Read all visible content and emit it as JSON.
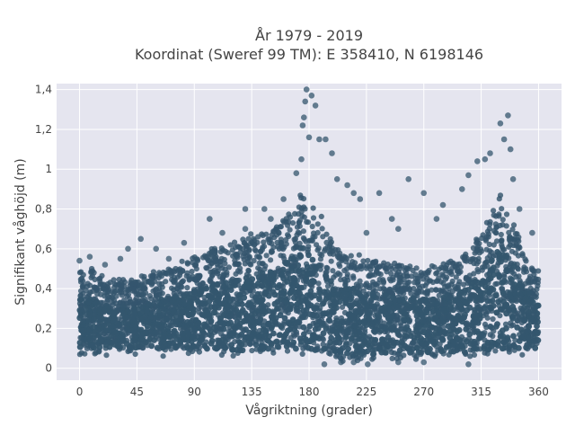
{
  "chart_data": {
    "type": "scatter",
    "title_line1": "År 1979 - 2019",
    "title_line2": "Koordinat (Sweref 99 TM): E 358410, N 6198146",
    "xlabel": "Vågriktning (grader)",
    "ylabel": "Signifikant våghöjd (m)",
    "xlim": [
      -18,
      378
    ],
    "ylim": [
      -0.06,
      1.43
    ],
    "xticks": [
      0,
      45,
      90,
      135,
      180,
      225,
      270,
      315,
      360
    ],
    "xtick_labels": [
      "0",
      "45",
      "90",
      "135",
      "180",
      "225",
      "270",
      "315",
      "360"
    ],
    "yticks": [
      0,
      0.2,
      0.4,
      0.6,
      0.8,
      1.0,
      1.2,
      1.4
    ],
    "ytick_labels": [
      "0",
      "0,2",
      "0,4",
      "0,6",
      "0,8",
      "1",
      "1,2",
      "1,4"
    ],
    "grid": true,
    "marker_color": "#34566e",
    "background_color": "#e5e5ef",
    "envelope": {
      "x": [
        0,
        10,
        20,
        45,
        90,
        120,
        150,
        165,
        175,
        180,
        190,
        200,
        225,
        270,
        300,
        315,
        325,
        330,
        340,
        350,
        360
      ],
      "y_max_dense": [
        0.5,
        0.5,
        0.45,
        0.45,
        0.55,
        0.65,
        0.7,
        0.78,
        0.88,
        0.85,
        0.75,
        0.6,
        0.55,
        0.5,
        0.55,
        0.68,
        0.82,
        0.88,
        0.75,
        0.55,
        0.5
      ],
      "y_min_dense": [
        0.07,
        0.07,
        0.07,
        0.07,
        0.07,
        0.06,
        0.06,
        0.06,
        0.06,
        0.05,
        0.05,
        0.04,
        0.04,
        0.05,
        0.05,
        0.06,
        0.06,
        0.06,
        0.07,
        0.07,
        0.07
      ]
    },
    "outliers": [
      {
        "x": 0,
        "y": 0.54
      },
      {
        "x": 8,
        "y": 0.56
      },
      {
        "x": 32,
        "y": 0.55
      },
      {
        "x": 38,
        "y": 0.6
      },
      {
        "x": 48,
        "y": 0.65
      },
      {
        "x": 60,
        "y": 0.6
      },
      {
        "x": 82,
        "y": 0.63
      },
      {
        "x": 102,
        "y": 0.75
      },
      {
        "x": 112,
        "y": 0.68
      },
      {
        "x": 130,
        "y": 0.8
      },
      {
        "x": 145,
        "y": 0.8
      },
      {
        "x": 160,
        "y": 0.85
      },
      {
        "x": 170,
        "y": 0.98
      },
      {
        "x": 174,
        "y": 1.05
      },
      {
        "x": 175,
        "y": 1.22
      },
      {
        "x": 176,
        "y": 1.26
      },
      {
        "x": 177,
        "y": 1.34
      },
      {
        "x": 178,
        "y": 1.4
      },
      {
        "x": 180,
        "y": 1.16
      },
      {
        "x": 182,
        "y": 1.37
      },
      {
        "x": 185,
        "y": 1.32
      },
      {
        "x": 188,
        "y": 1.15
      },
      {
        "x": 193,
        "y": 1.15
      },
      {
        "x": 198,
        "y": 1.08
      },
      {
        "x": 202,
        "y": 0.95
      },
      {
        "x": 210,
        "y": 0.92
      },
      {
        "x": 215,
        "y": 0.88
      },
      {
        "x": 220,
        "y": 0.85
      },
      {
        "x": 235,
        "y": 0.88
      },
      {
        "x": 245,
        "y": 0.75
      },
      {
        "x": 258,
        "y": 0.95
      },
      {
        "x": 270,
        "y": 0.88
      },
      {
        "x": 285,
        "y": 0.82
      },
      {
        "x": 300,
        "y": 0.9
      },
      {
        "x": 305,
        "y": 0.97
      },
      {
        "x": 312,
        "y": 1.04
      },
      {
        "x": 318,
        "y": 1.05
      },
      {
        "x": 322,
        "y": 1.08
      },
      {
        "x": 330,
        "y": 1.23
      },
      {
        "x": 333,
        "y": 1.15
      },
      {
        "x": 336,
        "y": 1.27
      },
      {
        "x": 338,
        "y": 1.1
      },
      {
        "x": 340,
        "y": 0.95
      },
      {
        "x": 345,
        "y": 0.8
      },
      {
        "x": 355,
        "y": 0.68
      },
      {
        "x": 130,
        "y": 0.7
      },
      {
        "x": 150,
        "y": 0.75
      },
      {
        "x": 225,
        "y": 0.68
      },
      {
        "x": 250,
        "y": 0.7
      },
      {
        "x": 280,
        "y": 0.75
      },
      {
        "x": 20,
        "y": 0.52
      },
      {
        "x": 70,
        "y": 0.55
      }
    ],
    "low_outliers": [
      {
        "x": 192,
        "y": 0.02
      },
      {
        "x": 205,
        "y": 0.03
      },
      {
        "x": 226,
        "y": 0.02
      },
      {
        "x": 250,
        "y": 0.03
      },
      {
        "x": 270,
        "y": 0.03
      },
      {
        "x": 305,
        "y": 0.02
      },
      {
        "x": 215,
        "y": 0.03
      }
    ]
  }
}
